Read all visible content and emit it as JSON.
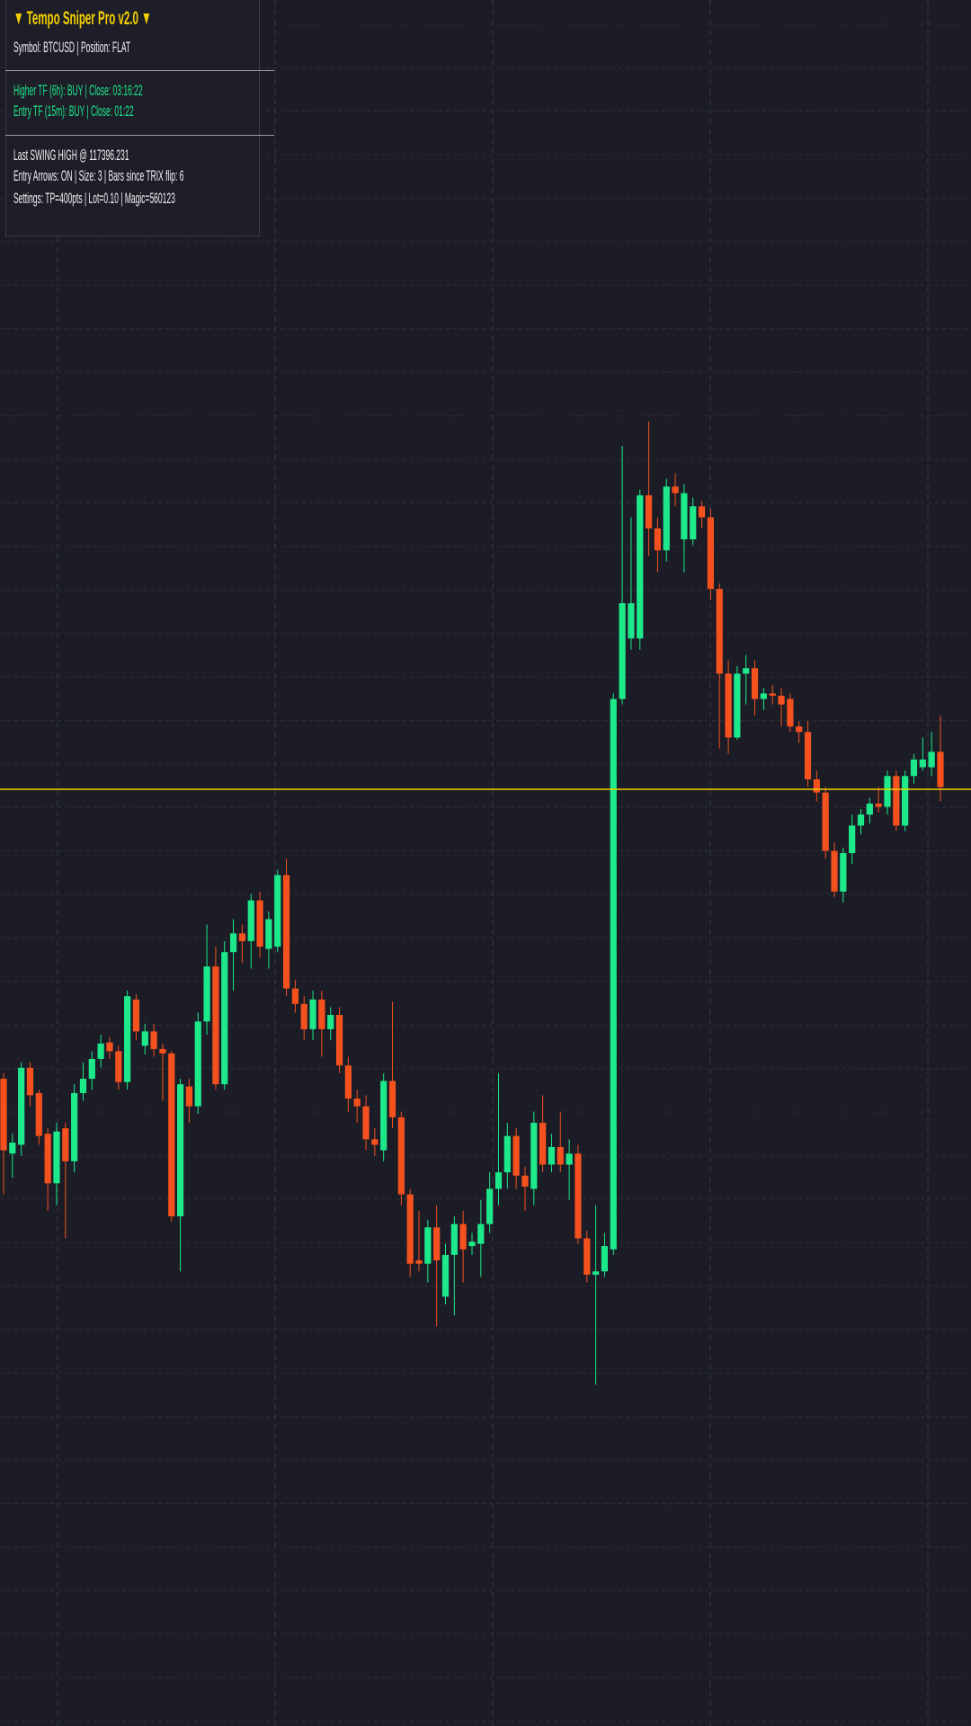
{
  "panel": {
    "title": "▼ Tempo Sniper Pro v2.0 ▼",
    "lines": [
      "Symbol: BTCUSD | Position: FLAT",
      "Higher TF (6h): BUY | Close: 03:16:22",
      "Entry TF (15m): BUY | Close: 01:22",
      "Last SWING HIGH @ 117396.231",
      "Entry Arrows: ON | Size: 3 | Bars since TRIX flip: 6",
      "Settings: TP=400pts | Lot=0.10 | Magic=560123"
    ]
  },
  "chart_data": {
    "type": "candlestick",
    "up_color": "#1de98b",
    "down_color": "#f4511e",
    "line_color": "#f5d000",
    "level": 851,
    "ylim": [
      0,
      1568
    ],
    "open": [
      588,
      520,
      528,
      598,
      575,
      538,
      493,
      543,
      513,
      575,
      588,
      606,
      621,
      613,
      585,
      660,
      618,
      631,
      615,
      611,
      463,
      581,
      563,
      640,
      690,
      583,
      703,
      720,
      713,
      750,
      706,
      708,
      773,
      670,
      656,
      633,
      660,
      633,
      646,
      600,
      570,
      563,
      533,
      523,
      586,
      553,
      483,
      423,
      420,
      453,
      390,
      428,
      456,
      436,
      438,
      456,
      488,
      503,
      536,
      500,
      488,
      548,
      510,
      526,
      510,
      520,
      443,
      410,
      413,
      433,
      933,
      988,
      988,
      1118,
      1088,
      1068,
      1126,
      1078,
      1078,
      1108,
      1098,
      1033,
      956,
      898,
      956,
      961,
      933,
      938,
      936,
      933,
      908,
      903,
      860,
      848,
      795,
      758,
      793,
      818,
      828,
      838,
      835,
      863,
      818,
      863,
      871,
      871,
      885
    ],
    "high": [
      593,
      538,
      603,
      603,
      578,
      543,
      548,
      548,
      583,
      603,
      613,
      628,
      626,
      618,
      668,
      665,
      638,
      638,
      620,
      613,
      588,
      588,
      648,
      728,
      708,
      713,
      733,
      728,
      756,
      758,
      740,
      778,
      788,
      678,
      663,
      668,
      668,
      653,
      653,
      608,
      578,
      573,
      543,
      593,
      658,
      558,
      488,
      468,
      460,
      473,
      438,
      463,
      468,
      448,
      478,
      503,
      593,
      548,
      543,
      508,
      558,
      573,
      538,
      558,
      533,
      528,
      450,
      473,
      448,
      938,
      1163,
      1098,
      1123,
      1185,
      1098,
      1133,
      1138,
      1128,
      1116,
      1113,
      1106,
      1038,
      968,
      963,
      973,
      968,
      943,
      946,
      943,
      938,
      913,
      913,
      868,
      853,
      803,
      798,
      828,
      833,
      843,
      853,
      868,
      868,
      868,
      883,
      898,
      903,
      918
    ],
    "low": [
      483,
      498,
      518,
      563,
      528,
      468,
      473,
      443,
      503,
      568,
      578,
      598,
      606,
      578,
      578,
      623,
      610,
      608,
      568,
      458,
      413,
      548,
      556,
      628,
      578,
      578,
      668,
      693,
      688,
      698,
      688,
      703,
      663,
      648,
      623,
      623,
      608,
      623,
      593,
      558,
      548,
      523,
      518,
      513,
      543,
      473,
      408,
      413,
      403,
      363,
      383,
      373,
      403,
      428,
      408,
      448,
      473,
      488,
      488,
      468,
      473,
      503,
      503,
      503,
      478,
      438,
      403,
      310,
      408,
      428,
      928,
      978,
      978,
      1063,
      1048,
      1058,
      1108,
      1048,
      1073,
      1088,
      1023,
      888,
      883,
      896,
      928,
      918,
      923,
      928,
      908,
      903,
      893,
      853,
      840,
      788,
      753,
      748,
      783,
      810,
      820,
      830,
      828,
      813,
      813,
      856,
      868,
      863,
      840
    ],
    "close": [
      523,
      530,
      598,
      573,
      536,
      493,
      540,
      513,
      575,
      588,
      606,
      620,
      613,
      585,
      663,
      631,
      631,
      615,
      611,
      463,
      583,
      563,
      640,
      690,
      583,
      703,
      720,
      713,
      750,
      708,
      733,
      773,
      670,
      656,
      633,
      660,
      633,
      646,
      600,
      570,
      563,
      533,
      528,
      586,
      553,
      483,
      420,
      420,
      453,
      423,
      428,
      456,
      433,
      440,
      456,
      488,
      503,
      536,
      500,
      490,
      548,
      510,
      526,
      510,
      520,
      443,
      410,
      413,
      436,
      933,
      1020,
      1020,
      1118,
      1088,
      1068,
      1126,
      1120,
      1120,
      1108,
      1098,
      1033,
      956,
      898,
      956,
      961,
      933,
      938,
      936,
      928,
      908,
      903,
      860,
      848,
      795,
      758,
      793,
      818,
      828,
      838,
      835,
      863,
      818,
      863,
      878,
      878,
      885,
      853
    ]
  }
}
